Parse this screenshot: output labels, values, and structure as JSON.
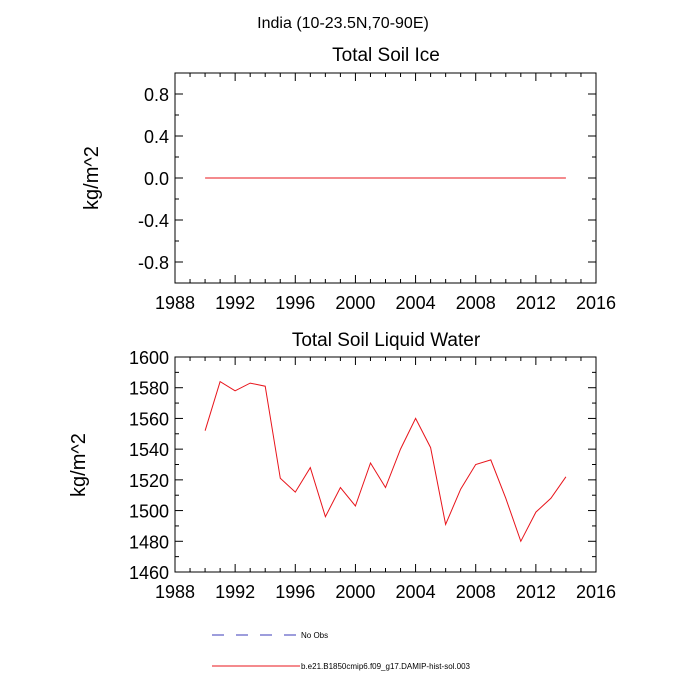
{
  "suptitle": "India (10-23.5N,70-90E)",
  "line_color": "#e8141b",
  "nobs_color": "#3b3bb8",
  "legend": {
    "items": [
      {
        "label": "No Obs",
        "style": "dashed"
      },
      {
        "label": "b.e21.B1850cmip6.f09_g17.DAMIP-hist-sol.003",
        "style": "solid"
      }
    ]
  },
  "chart_data": [
    {
      "type": "line",
      "title": "Total Soil Ice",
      "xlabel": "",
      "ylabel": "kg/m^2",
      "xlim": [
        1988,
        2016
      ],
      "ylim": [
        -1.0,
        1.0
      ],
      "xticks": [
        1988,
        1992,
        1996,
        2000,
        2004,
        2008,
        2012,
        2016
      ],
      "yticks": [
        -0.8,
        -0.4,
        0.0,
        0.4,
        0.8
      ],
      "ytick_labels": [
        "-0.8",
        "-0.4",
        "0.0",
        "0.4",
        "0.8"
      ],
      "series": [
        {
          "x": [
            1990,
            1991,
            1992,
            1993,
            1994,
            1995,
            1996,
            1997,
            1998,
            1999,
            2000,
            2001,
            2002,
            2003,
            2004,
            2005,
            2006,
            2007,
            2008,
            2009,
            2010,
            2011,
            2012,
            2013,
            2014
          ],
          "values": [
            0,
            0,
            0,
            0,
            0,
            0,
            0,
            0,
            0,
            0,
            0,
            0,
            0,
            0,
            0,
            0,
            0,
            0,
            0,
            0,
            0,
            0,
            0,
            0,
            0
          ]
        }
      ]
    },
    {
      "type": "line",
      "title": "Total Soil Liquid Water",
      "xlabel": "",
      "ylabel": "kg/m^2",
      "xlim": [
        1988,
        2016
      ],
      "ylim": [
        1460,
        1600
      ],
      "xticks": [
        1988,
        1992,
        1996,
        2000,
        2004,
        2008,
        2012,
        2016
      ],
      "yticks": [
        1460,
        1480,
        1500,
        1520,
        1540,
        1560,
        1580,
        1600
      ],
      "ytick_labels": [
        "1460",
        "1480",
        "1500",
        "1520",
        "1540",
        "1560",
        "1580",
        "1600"
      ],
      "series": [
        {
          "x": [
            1990,
            1991,
            1992,
            1993,
            1994,
            1995,
            1996,
            1997,
            1998,
            1999,
            2000,
            2001,
            2002,
            2003,
            2004,
            2005,
            2006,
            2007,
            2008,
            2009,
            2010,
            2011,
            2012,
            2013,
            2014
          ],
          "values": [
            1552,
            1584,
            1578,
            1583,
            1581,
            1521,
            1512,
            1528,
            1496,
            1515,
            1503,
            1531,
            1515,
            1540,
            1560,
            1541,
            1491,
            1514,
            1530,
            1533,
            1508,
            1480,
            1499,
            1508,
            1522
          ]
        }
      ]
    }
  ]
}
